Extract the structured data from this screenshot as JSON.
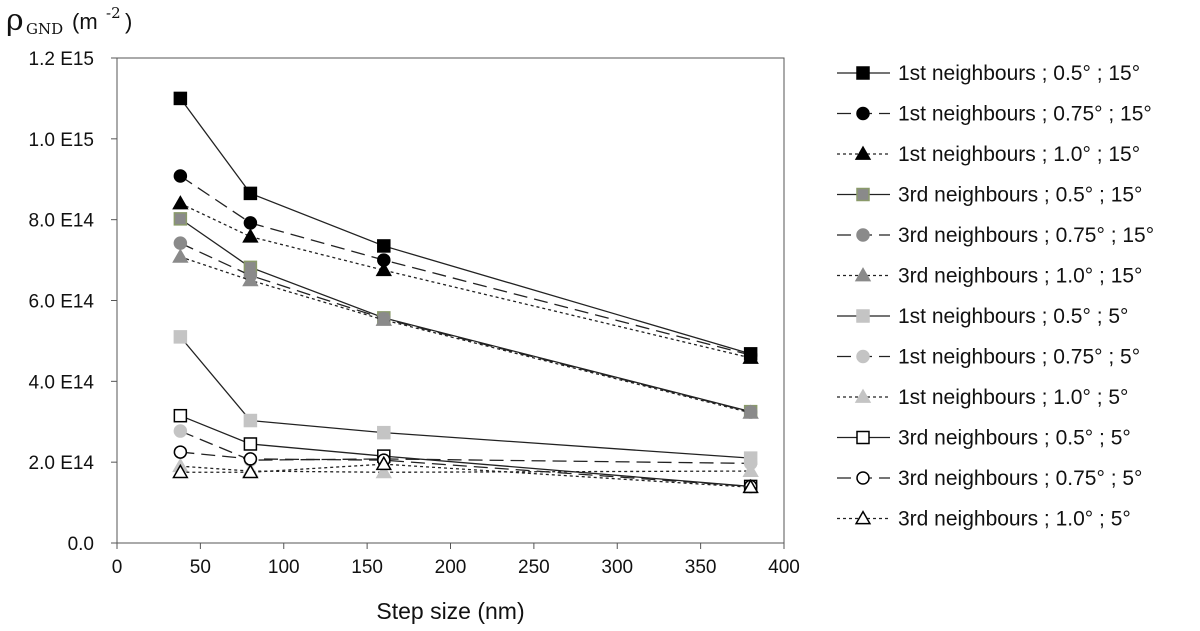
{
  "chart_data": {
    "type": "line",
    "ylabel": {
      "symbol": "ρ",
      "subscript": "GND",
      "unit": "(m",
      "exponent": "-2",
      "close": ")"
    },
    "xlabel": "Step size (nm)",
    "xlim": [
      0,
      400
    ],
    "ylim": [
      0,
      1200000000000000.0
    ],
    "x_ticks": [
      0,
      50,
      100,
      150,
      200,
      250,
      300,
      350,
      400
    ],
    "x_tick_labels": [
      "0",
      "50",
      "100",
      "150",
      "200",
      "250",
      "300",
      "350",
      "400"
    ],
    "y_ticks": [
      0,
      200000000000000.0,
      400000000000000.0,
      600000000000000.0,
      800000000000000.0,
      1000000000000000.0,
      1200000000000000.0
    ],
    "y_tick_labels": [
      "0.0",
      "2.0 E14",
      "4.0 E14",
      "6.0 E14",
      "8.0 E14",
      "1.0 E15",
      "1.2 E15"
    ],
    "legend_position": "right",
    "grid": false,
    "x": [
      38,
      80,
      160,
      380
    ],
    "series": [
      {
        "name": "1st neighbours ; 0.5° ; 15°",
        "values": [
          1100000000000000.0,
          865000000000000.0,
          735000000000000.0,
          468000000000000.0
        ],
        "marker": "square",
        "fill": "#000000",
        "stroke": "#000000",
        "line": "#222222",
        "dash": ""
      },
      {
        "name": "1st neighbours ; 0.75° ; 15°",
        "values": [
          908000000000000.0,
          792000000000000.0,
          700000000000000.0,
          465000000000000.0
        ],
        "marker": "circle",
        "fill": "#000000",
        "stroke": "#000000",
        "line": "#222222",
        "dash": "14 7"
      },
      {
        "name": "1st neighbours ; 1.0° ; 15°",
        "values": [
          840000000000000.0,
          758000000000000.0,
          675000000000000.0,
          458000000000000.0
        ],
        "marker": "triangle",
        "fill": "#000000",
        "stroke": "#000000",
        "line": "#222222",
        "dash": "3 3"
      },
      {
        "name": "3rd neighbours ; 0.5° ; 15°",
        "values": [
          802000000000000.0,
          682000000000000.0,
          557000000000000.0,
          325000000000000.0
        ],
        "marker": "square",
        "fill": "#8a8a8a",
        "stroke": "#8a9a6a",
        "line": "#222222",
        "dash": ""
      },
      {
        "name": "3rd neighbours ; 0.75° ; 15°",
        "values": [
          742000000000000.0,
          662000000000000.0,
          555000000000000.0,
          324000000000000.0
        ],
        "marker": "circle",
        "fill": "#8a8a8a",
        "stroke": "#8a8a8a",
        "line": "#222222",
        "dash": "14 7"
      },
      {
        "name": "3rd neighbours ; 1.0° ; 15°",
        "values": [
          708000000000000.0,
          650000000000000.0,
          552000000000000.0,
          322000000000000.0
        ],
        "marker": "triangle",
        "fill": "#8a8a8a",
        "stroke": "#8a8a8a",
        "line": "#222222",
        "dash": "3 3"
      },
      {
        "name": "1st neighbours ; 0.5° ; 5°",
        "values": [
          510000000000000.0,
          303000000000000.0,
          273000000000000.0,
          210000000000000.0
        ],
        "marker": "square",
        "fill": "#c4c4c4",
        "stroke": "#c4c4c4",
        "line": "#222222",
        "dash": ""
      },
      {
        "name": "1st neighbours ; 0.75° ; 5°",
        "values": [
          277000000000000.0,
          205000000000000.0,
          208000000000000.0,
          197000000000000.0
        ],
        "marker": "circle",
        "fill": "#c4c4c4",
        "stroke": "#c4c4c4",
        "line": "#222222",
        "dash": "14 7"
      },
      {
        "name": "1st neighbours ; 1.0° ; 5°",
        "values": [
          190000000000000.0,
          178000000000000.0,
          175000000000000.0,
          178000000000000.0
        ],
        "marker": "triangle",
        "fill": "#c4c4c4",
        "stroke": "#c4c4c4",
        "line": "#222222",
        "dash": "3 3"
      },
      {
        "name": "3rd neighbours ; 0.5° ; 5°",
        "values": [
          315000000000000.0,
          245000000000000.0,
          215000000000000.0,
          140000000000000.0
        ],
        "marker": "square",
        "fill": "#ffffff",
        "stroke": "#000000",
        "line": "#222222",
        "dash": ""
      },
      {
        "name": "3rd neighbours ; 0.75° ; 5°",
        "values": [
          225000000000000.0,
          208000000000000.0,
          205000000000000.0,
          140000000000000.0
        ],
        "marker": "circle",
        "fill": "#ffffff",
        "stroke": "#000000",
        "line": "#222222",
        "dash": "14 7"
      },
      {
        "name": "3rd neighbours ; 1.0° ; 5°",
        "values": [
          175000000000000.0,
          175000000000000.0,
          195000000000000.0,
          138000000000000.0
        ],
        "marker": "triangle",
        "fill": "#ffffff",
        "stroke": "#000000",
        "line": "#222222",
        "dash": "3 3"
      }
    ]
  }
}
